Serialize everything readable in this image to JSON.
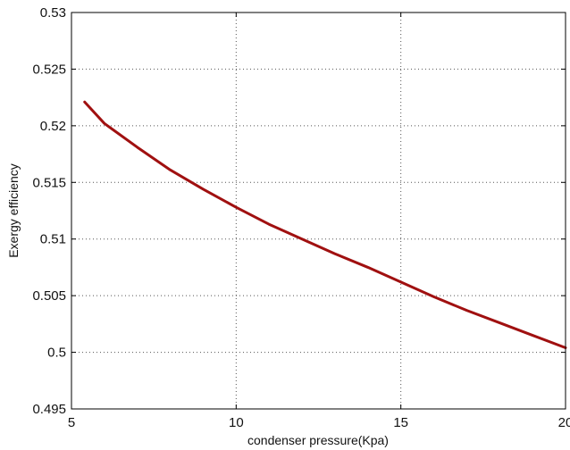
{
  "chart_data": {
    "type": "line",
    "title": "",
    "xlabel": "condenser pressure(Kpa)",
    "ylabel": "Exergy efficiency",
    "xlim": [
      5,
      20
    ],
    "ylim": [
      0.495,
      0.53
    ],
    "x_ticks": [
      5,
      10,
      15,
      20
    ],
    "x_tick_labels": [
      "5",
      "10",
      "15",
      "20"
    ],
    "y_ticks": [
      0.495,
      0.5,
      0.505,
      0.51,
      0.515,
      0.52,
      0.525,
      0.53
    ],
    "y_tick_labels": [
      "0.495",
      "0.5",
      "0.505",
      "0.51",
      "0.515",
      "0.52",
      "0.525",
      "0.53"
    ],
    "grid": true,
    "grid_style": "dotted",
    "legend": "none",
    "series": [
      {
        "color": "#a01010",
        "x": [
          5.4,
          6,
          7,
          8,
          9,
          10,
          11,
          12,
          13,
          14,
          15,
          16,
          17,
          18,
          19,
          20
        ],
        "y": [
          0.5221,
          0.5202,
          0.5181,
          0.5161,
          0.5144,
          0.5128,
          0.5113,
          0.51,
          0.5087,
          0.5075,
          0.5062,
          0.5049,
          0.5037,
          0.5026,
          0.5015,
          0.5004
        ]
      }
    ]
  }
}
